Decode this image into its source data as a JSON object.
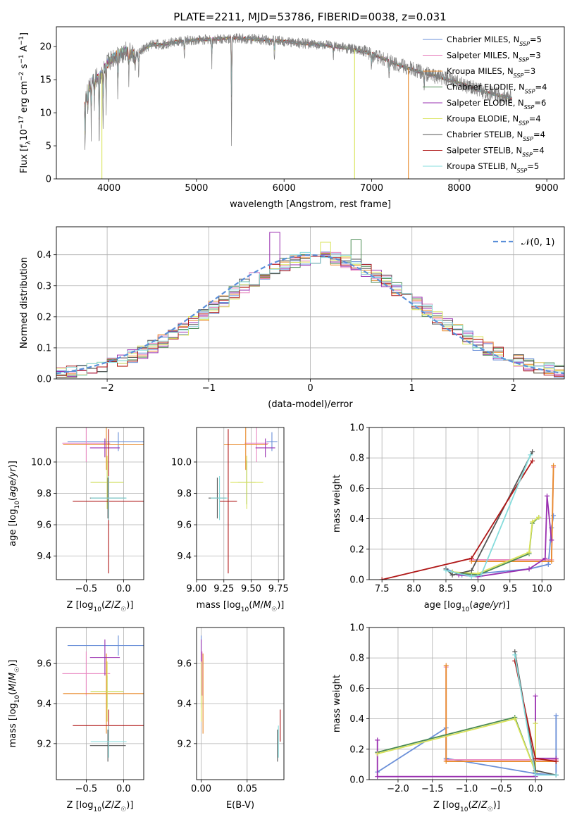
{
  "figure": {
    "title": "PLATE=2211, MJD=53786, FIBERID=0038, z=0.031"
  },
  "colors": {
    "Chabrier MILES": "#6a8fd8",
    "Salpeter MILES": "#e98ac2",
    "Kroupa MILES": "#e88a2a",
    "Chabrier ELODIE": "#4a8a52",
    "Salpeter ELODIE": "#9a30b0",
    "Kroupa ELODIE": "#d9e35a",
    "Chabrier STELIB": "#555555",
    "Salpeter STELIB": "#b01818",
    "Kroupa STELIB": "#86dcdc"
  },
  "chart_data": [
    {
      "id": "spectrum",
      "type": "line",
      "xlabel": "wavelength [Angstrom, rest frame]",
      "ylabel": "Flux [f_λ10^-17 erg cm^-2 s^-1 A^-1]",
      "xlim": [
        3400,
        9200
      ],
      "ylim": [
        0,
        23
      ],
      "xticks": [
        4000,
        5000,
        6000,
        7000,
        8000,
        9000
      ],
      "yticks": [
        0,
        5,
        10,
        15,
        20
      ],
      "grid": false,
      "legend_position": "right",
      "legend": [
        {
          "name": "Chabrier MILES",
          "n": "5"
        },
        {
          "name": "Salpeter MILES",
          "n": "3"
        },
        {
          "name": "Kroupa MILES",
          "n": "3"
        },
        {
          "name": "Chabrier ELODIE",
          "n": "4"
        },
        {
          "name": "Salpeter ELODIE",
          "n": "6"
        },
        {
          "name": "Kroupa ELODIE",
          "n": "4"
        },
        {
          "name": "Chabrier STELIB",
          "n": "4"
        },
        {
          "name": "Salpeter STELIB",
          "n": "4"
        },
        {
          "name": "Kroupa STELIB",
          "n": "5"
        }
      ],
      "continuum": {
        "x": [
          3720,
          3800,
          3900,
          4000,
          4100,
          4200,
          4300,
          4400,
          4500,
          4600,
          4800,
          5000,
          5200,
          5400,
          5600,
          5800,
          6000,
          6200,
          6400,
          6600,
          6800,
          7000,
          7200,
          7400,
          7600,
          7800,
          8000,
          8200,
          8400,
          8600
        ],
        "y": [
          11.5,
          14.8,
          15.5,
          17.8,
          18.8,
          19.3,
          18.6,
          19.6,
          20.4,
          20.3,
          20.8,
          21.0,
          21.1,
          21.3,
          21.2,
          21.0,
          20.8,
          20.5,
          20.3,
          20.0,
          19.6,
          18.9,
          17.8,
          16.8,
          16.0,
          15.3,
          14.5,
          13.5,
          12.8,
          12.2
        ]
      },
      "absorption_dips": [
        {
          "x": 3728,
          "y": 3.7
        },
        {
          "x": 3760,
          "y": 9.5
        },
        {
          "x": 3798,
          "y": 6.5
        },
        {
          "x": 3835,
          "y": 9.0
        },
        {
          "x": 3889,
          "y": 3.0
        },
        {
          "x": 3934,
          "y": 7.0
        },
        {
          "x": 3969,
          "y": 9.0
        },
        {
          "x": 4102,
          "y": 11.5
        },
        {
          "x": 4227,
          "y": 13.8
        },
        {
          "x": 4300,
          "y": 15.5
        },
        {
          "x": 4340,
          "y": 14.5
        },
        {
          "x": 4861,
          "y": 17.0
        },
        {
          "x": 5175,
          "y": 16.8
        },
        {
          "x": 5400,
          "y": 5.5
        },
        {
          "x": 5890,
          "y": 17.3
        },
        {
          "x": 6563,
          "y": 17.5
        },
        {
          "x": 7000,
          "y": 16.0
        },
        {
          "x": 7200,
          "y": 14.8
        },
        {
          "x": 7600,
          "y": 12.5
        },
        {
          "x": 8498,
          "y": 12.0
        }
      ],
      "model_dropouts": [
        {
          "series": "Kroupa ELODIE",
          "x": 3920,
          "y": 0
        },
        {
          "series": "Kroupa ELODIE",
          "x": 6805,
          "y": 0
        },
        {
          "series": "Kroupa MILES",
          "x": 7420,
          "y": 0
        }
      ]
    },
    {
      "id": "residual_distribution",
      "type": "histogram",
      "xlabel": "(data-model)/error",
      "ylabel": "Normed distribution",
      "xlim": [
        -2.5,
        2.5
      ],
      "ylim": [
        0,
        0.49
      ],
      "xticks": [
        -2,
        -1,
        0,
        1,
        2
      ],
      "xtick_labels": [
        "−2",
        "−1",
        "0",
        "1",
        "2"
      ],
      "yticks": [
        0.0,
        0.1,
        0.2,
        0.3,
        0.4
      ],
      "grid": true,
      "bin_width": 0.1,
      "legend_position": "top-right",
      "legend_label": "𝒩(0, 1)",
      "reference_curve": {
        "type": "normal",
        "mean": 0,
        "sigma": 1
      },
      "highlight_bins": [
        {
          "series": "Salpeter ELODIE",
          "x": -0.35,
          "y": 0.472
        },
        {
          "series": "Chabrier ELODIE",
          "x": 0.45,
          "y": 0.448
        },
        {
          "series": "Kroupa ELODIE",
          "x": 0.15,
          "y": 0.44
        }
      ]
    },
    {
      "id": "age_vs_Z",
      "type": "errorbar",
      "xlabel": "Z [log10(Z/Z☉)]",
      "ylabel": "age  [log10(age/yr)]",
      "xlim": [
        -0.9,
        0.27
      ],
      "ylim": [
        9.25,
        10.22
      ],
      "xticks": [
        -0.5,
        0.0
      ],
      "xtick_labels": [
        "−0.5",
        "0.0"
      ],
      "yticks": [
        9.4,
        9.6,
        9.8,
        10.0
      ],
      "grid": true,
      "points": [
        {
          "series": "Chabrier MILES",
          "x": -0.07,
          "xerr": 0.68,
          "y": 10.13,
          "yerr": 0.06
        },
        {
          "series": "Salpeter MILES",
          "x": -0.5,
          "xerr": 0.32,
          "y": 10.12,
          "yerr": 0.12
        },
        {
          "series": "Kroupa MILES",
          "x": -0.23,
          "xerr": 0.58,
          "y": 10.11,
          "yerr": 0.16
        },
        {
          "series": "Chabrier ELODIE",
          "x": -0.22,
          "xerr": 0.22,
          "y": 9.87,
          "yerr": 0.14
        },
        {
          "series": "Salpeter ELODIE",
          "x": -0.25,
          "xerr": 0.2,
          "y": 10.09,
          "yerr": 0.06
        },
        {
          "series": "Kroupa ELODIE",
          "x": -0.22,
          "xerr": 0.22,
          "y": 9.87,
          "yerr": 0.17
        },
        {
          "series": "Chabrier STELIB",
          "x": -0.21,
          "xerr": 0.24,
          "y": 9.77,
          "yerr": 0.13
        },
        {
          "series": "Salpeter STELIB",
          "x": -0.2,
          "xerr": 0.48,
          "y": 9.75,
          "yerr": 0.46
        },
        {
          "series": "Kroupa STELIB",
          "x": -0.2,
          "xerr": 0.24,
          "y": 9.77,
          "yerr": 0.14
        }
      ]
    },
    {
      "id": "age_vs_mass",
      "type": "errorbar",
      "xlabel": "mass [log10(M/M☉)]",
      "ylabel": "",
      "xlim": [
        9.0,
        9.8
      ],
      "ylim": [
        9.25,
        10.22
      ],
      "xticks": [
        9.0,
        9.25,
        9.5,
        9.75
      ],
      "xtick_labels": [
        "9.00",
        "9.25",
        "9.50",
        "9.75"
      ],
      "yticks": [
        9.4,
        9.6,
        9.8,
        10.0
      ],
      "grid": true,
      "points": [
        {
          "series": "Chabrier MILES",
          "x": 9.69,
          "xerr": 0.05,
          "y": 10.13,
          "yerr": 0.06
        },
        {
          "series": "Salpeter MILES",
          "x": 9.55,
          "xerr": 0.11,
          "y": 10.12,
          "yerr": 0.12
        },
        {
          "series": "Kroupa MILES",
          "x": 9.45,
          "xerr": 0.2,
          "y": 10.11,
          "yerr": 0.16
        },
        {
          "series": "Chabrier ELODIE",
          "x": 9.46,
          "xerr": 0.08,
          "y": 9.87,
          "yerr": 0.14
        },
        {
          "series": "Salpeter ELODIE",
          "x": 9.63,
          "xerr": 0.09,
          "y": 10.09,
          "yerr": 0.06
        },
        {
          "series": "Kroupa ELODIE",
          "x": 9.46,
          "xerr": 0.15,
          "y": 9.87,
          "yerr": 0.17
        },
        {
          "series": "Chabrier STELIB",
          "x": 9.19,
          "xerr": 0.08,
          "y": 9.77,
          "yerr": 0.13
        },
        {
          "series": "Salpeter STELIB",
          "x": 9.29,
          "xerr": 0.08,
          "y": 9.75,
          "yerr": 0.46
        },
        {
          "series": "Kroupa STELIB",
          "x": 9.21,
          "xerr": 0.08,
          "y": 9.77,
          "yerr": 0.14
        }
      ]
    },
    {
      "id": "massweight_vs_age",
      "type": "line",
      "xlabel": "age  [log10(age/yr)]",
      "ylabel": "mass weight",
      "xlim": [
        7.3,
        10.35
      ],
      "ylim": [
        0,
        1.0
      ],
      "xticks": [
        7.5,
        8.0,
        8.5,
        9.0,
        9.5,
        10.0
      ],
      "xtick_labels": [
        "7.5",
        "8.0",
        "8.5",
        "9.0",
        "9.5",
        "10.0"
      ],
      "yticks": [
        0.0,
        0.2,
        0.4,
        0.6,
        0.8,
        1.0
      ],
      "grid": true,
      "series": [
        {
          "name": "Chabrier MILES",
          "x": [
            8.5,
            8.75,
            9.8,
            10.1,
            10.15,
            10.18
          ],
          "y": [
            0.07,
            0.03,
            0.07,
            0.1,
            0.34,
            0.42
          ]
        },
        {
          "name": "Salpeter MILES",
          "x": [
            8.9,
            10.15,
            10.18
          ],
          "y": [
            0.13,
            0.13,
            0.74
          ]
        },
        {
          "name": "Kroupa MILES",
          "x": [
            8.9,
            10.15,
            10.18
          ],
          "y": [
            0.12,
            0.12,
            0.75
          ]
        },
        {
          "name": "Chabrier ELODIE",
          "x": [
            8.6,
            9.0,
            9.8,
            9.85,
            9.95
          ],
          "y": [
            0.05,
            0.03,
            0.17,
            0.37,
            0.41
          ]
        },
        {
          "name": "Salpeter ELODIE",
          "x": [
            8.7,
            9.0,
            9.8,
            10.05,
            10.08,
            10.15
          ],
          "y": [
            0.03,
            0.02,
            0.07,
            0.14,
            0.55,
            0.26
          ]
        },
        {
          "name": "Kroupa ELODIE",
          "x": [
            8.6,
            9.0,
            9.8,
            9.85,
            9.95
          ],
          "y": [
            0.05,
            0.04,
            0.18,
            0.38,
            0.41
          ]
        },
        {
          "name": "Chabrier STELIB",
          "x": [
            8.5,
            8.6,
            8.9,
            9.85
          ],
          "y": [
            0.07,
            0.03,
            0.06,
            0.84
          ]
        },
        {
          "name": "Salpeter STELIB",
          "x": [
            7.5,
            8.9,
            9.85
          ],
          "y": [
            0.0,
            0.14,
            0.78
          ]
        },
        {
          "name": "Kroupa STELIB",
          "x": [
            8.5,
            8.9,
            9.05,
            9.82
          ],
          "y": [
            0.06,
            0.02,
            0.03,
            0.82
          ]
        }
      ]
    },
    {
      "id": "mass_vs_Z",
      "type": "errorbar",
      "xlabel": "Z [log10(Z/Z☉)]",
      "ylabel": "mass [log10(M/M☉)]",
      "xlim": [
        -0.9,
        0.27
      ],
      "ylim": [
        9.02,
        9.78
      ],
      "xticks": [
        -0.5,
        0.0
      ],
      "xtick_labels": [
        "−0.5",
        "0.0"
      ],
      "yticks": [
        9.2,
        9.4,
        9.6
      ],
      "grid": true,
      "points": [
        {
          "series": "Chabrier MILES",
          "x": -0.07,
          "xerr": 0.68,
          "y": 9.69,
          "yerr": 0.05
        },
        {
          "series": "Salpeter MILES",
          "x": -0.5,
          "xerr": 0.32,
          "y": 9.55,
          "yerr": 0.11
        },
        {
          "series": "Kroupa MILES",
          "x": -0.23,
          "xerr": 0.58,
          "y": 9.45,
          "yerr": 0.2
        },
        {
          "series": "Chabrier ELODIE",
          "x": -0.22,
          "xerr": 0.22,
          "y": 9.46,
          "yerr": 0.08
        },
        {
          "series": "Salpeter ELODIE",
          "x": -0.25,
          "xerr": 0.2,
          "y": 9.63,
          "yerr": 0.09
        },
        {
          "series": "Kroupa ELODIE",
          "x": -0.22,
          "xerr": 0.22,
          "y": 9.46,
          "yerr": 0.15
        },
        {
          "series": "Chabrier STELIB",
          "x": -0.21,
          "xerr": 0.24,
          "y": 9.19,
          "yerr": 0.08
        },
        {
          "series": "Salpeter STELIB",
          "x": -0.2,
          "xerr": 0.48,
          "y": 9.29,
          "yerr": 0.08
        },
        {
          "series": "Kroupa STELIB",
          "x": -0.2,
          "xerr": 0.24,
          "y": 9.21,
          "yerr": 0.08
        }
      ]
    },
    {
      "id": "mass_vs_ebv",
      "type": "errorbar",
      "xlabel": "E(B-V)",
      "ylabel": "",
      "xlim": [
        -0.005,
        0.09
      ],
      "ylim": [
        9.02,
        9.78
      ],
      "xticks": [
        0.0,
        0.05
      ],
      "xtick_labels": [
        "0.00",
        "0.05"
      ],
      "yticks": [
        9.2,
        9.4,
        9.6
      ],
      "grid": true,
      "points": [
        {
          "series": "Chabrier MILES",
          "x": 0.0,
          "xerr": 0,
          "y": 9.69,
          "yerr": 0.05
        },
        {
          "series": "Salpeter MILES",
          "x": 0.001,
          "xerr": 0,
          "y": 9.55,
          "yerr": 0.11
        },
        {
          "series": "Kroupa MILES",
          "x": 0.002,
          "xerr": 0,
          "y": 9.45,
          "yerr": 0.2
        },
        {
          "series": "Chabrier ELODIE",
          "x": 0.0,
          "xerr": 0,
          "y": 9.46,
          "yerr": 0.08
        },
        {
          "series": "Salpeter ELODIE",
          "x": 0.0,
          "xerr": 0,
          "y": 9.63,
          "yerr": 0.09
        },
        {
          "series": "Kroupa ELODIE",
          "x": 0.0,
          "xerr": 0,
          "y": 9.46,
          "yerr": 0.15
        },
        {
          "series": "Chabrier STELIB",
          "x": 0.083,
          "xerr": 0,
          "y": 9.19,
          "yerr": 0.08
        },
        {
          "series": "Salpeter STELIB",
          "x": 0.086,
          "xerr": 0,
          "y": 9.29,
          "yerr": 0.08
        },
        {
          "series": "Kroupa STELIB",
          "x": 0.084,
          "xerr": 0,
          "y": 9.21,
          "yerr": 0.08
        }
      ]
    },
    {
      "id": "massweight_vs_Z",
      "type": "line",
      "xlabel": "Z [log10(Z/Z☉)]",
      "ylabel": "mass weight",
      "xlim": [
        -2.42,
        0.42
      ],
      "ylim": [
        0,
        1.0
      ],
      "xticks": [
        -2.0,
        -1.5,
        -1.0,
        -0.5,
        0.0
      ],
      "xtick_labels": [
        "−2.0",
        "−1.5",
        "−1.0",
        "−0.5",
        "0.0"
      ],
      "yticks": [
        0.0,
        0.2,
        0.4,
        0.6,
        0.8,
        1.0
      ],
      "grid": true,
      "series": [
        {
          "name": "Chabrier MILES",
          "x": [
            -2.3,
            -1.3,
            -1.3,
            0.0,
            0.3,
            0.3
          ],
          "y": [
            0.05,
            0.34,
            0.14,
            0.04,
            0.03,
            0.42
          ]
        },
        {
          "name": "Salpeter MILES",
          "x": [
            -1.3,
            -1.3,
            0.3
          ],
          "y": [
            0.74,
            0.13,
            0.13
          ]
        },
        {
          "name": "Kroupa MILES",
          "x": [
            -1.3,
            -1.3,
            0.3
          ],
          "y": [
            0.75,
            0.12,
            0.12
          ]
        },
        {
          "name": "Chabrier ELODIE",
          "x": [
            -2.3,
            -0.3,
            0.0,
            0.0
          ],
          "y": [
            0.18,
            0.41,
            0.05,
            0.37
          ]
        },
        {
          "name": "Salpeter ELODIE",
          "x": [
            -2.3,
            -2.3,
            0.0,
            0.0,
            0.0,
            0.3
          ],
          "y": [
            0.26,
            0.02,
            0.02,
            0.55,
            0.14,
            0.14
          ]
        },
        {
          "name": "Kroupa ELODIE",
          "x": [
            -2.3,
            -0.3,
            0.0,
            0.0
          ],
          "y": [
            0.17,
            0.4,
            0.05,
            0.37
          ]
        },
        {
          "name": "Chabrier STELIB",
          "x": [
            -0.3,
            0.0,
            0.3
          ],
          "y": [
            0.84,
            0.06,
            0.03
          ]
        },
        {
          "name": "Salpeter STELIB",
          "x": [
            -0.3,
            0.0,
            0.3
          ],
          "y": [
            0.78,
            0.14,
            0.12
          ]
        },
        {
          "name": "Kroupa STELIB",
          "x": [
            -0.3,
            0.0,
            0.3
          ],
          "y": [
            0.82,
            0.03,
            0.03
          ]
        }
      ]
    }
  ]
}
